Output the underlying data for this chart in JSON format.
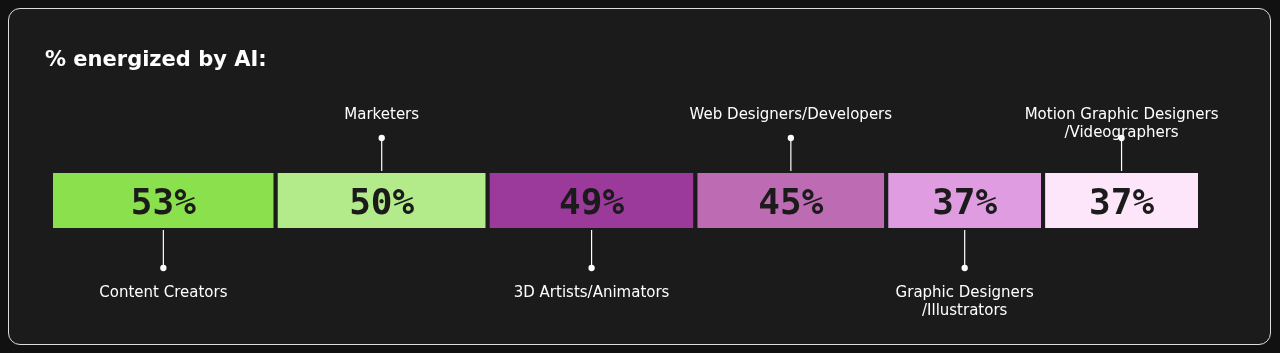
{
  "chart_data": {
    "type": "bar",
    "title": "% energized by AI:",
    "orientation": "horizontal",
    "stacked": true,
    "categories": [
      null
    ],
    "series": [
      {
        "name": "Content Creators",
        "color": "#8be04e",
        "values": [
          53
        ],
        "value_labels": [
          "53%"
        ]
      },
      {
        "name": "Marketers",
        "color": "#b3ea8a",
        "values": [
          50
        ],
        "value_labels": [
          "50%"
        ]
      },
      {
        "name": "3D Artists/Animators",
        "color": "#9b3a9b",
        "values": [
          49
        ],
        "value_labels": [
          "49%"
        ]
      },
      {
        "name": "Web Designers/Developers",
        "color": "#bd6cb3",
        "values": [
          45
        ],
        "value_labels": [
          "45%"
        ]
      },
      {
        "name": "Graphic Designers\n/Illustrators",
        "color": "#e09ce0",
        "values": [
          37
        ],
        "value_labels": [
          "37%"
        ]
      },
      {
        "name": "Motion Graphic Designers\n/Videographers",
        "color": "#fde6fa",
        "values": [
          37
        ],
        "value_labels": [
          "37%"
        ]
      }
    ]
  }
}
